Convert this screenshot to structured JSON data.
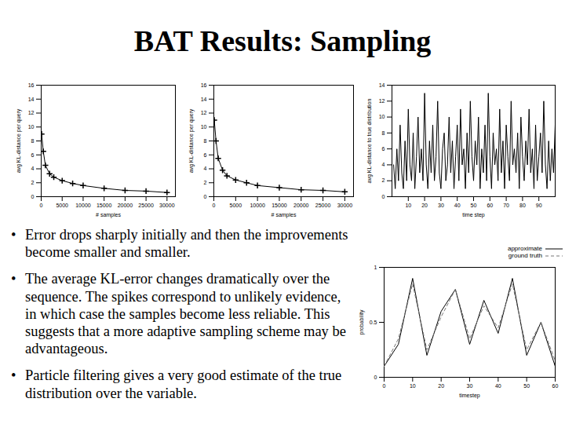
{
  "title": "BAT Results: Sampling",
  "bullets": [
    "Error drops sharply initially and then the improvements become smaller and smaller.",
    "The average KL-error changes dramatically over the sequence. The spikes correspond to unlikely evidence, in which case the samples become less reliable. This suggests that a more adaptive sampling scheme may be advantageous.",
    "Particle filtering gives a very good estimate of the true distribution over the variable."
  ],
  "chart_data": [
    {
      "type": "line",
      "x_label": "# samples",
      "y_label": "avg KL-distance per query",
      "x": [
        100,
        500,
        1000,
        2000,
        3000,
        5000,
        7500,
        10000,
        15000,
        20000,
        25000,
        30000
      ],
      "values": [
        9,
        6.5,
        4.5,
        3.3,
        2.8,
        2.3,
        1.9,
        1.6,
        1.2,
        0.9,
        0.8,
        0.6
      ],
      "color": "#000000",
      "marker": "plus",
      "xlim": [
        0,
        32000
      ],
      "xticks": [
        0,
        5000,
        10000,
        15000,
        20000,
        25000,
        30000
      ],
      "ylim": [
        0,
        16
      ],
      "yticks": [
        0,
        2,
        4,
        6,
        8,
        10,
        12,
        14,
        16
      ],
      "grid": false
    },
    {
      "type": "line",
      "x_label": "# samples",
      "y_label": "avg KL-distance per query",
      "x": [
        100,
        500,
        1000,
        2000,
        3000,
        5000,
        7500,
        10000,
        15000,
        20000,
        25000,
        30000
      ],
      "values": [
        11,
        8,
        5.5,
        3.8,
        3,
        2.4,
        2,
        1.6,
        1.3,
        1,
        0.9,
        0.7
      ],
      "color": "#000000",
      "marker": "plus",
      "xlim": [
        0,
        32000
      ],
      "xticks": [
        0,
        5000,
        10000,
        15000,
        20000,
        25000,
        30000
      ],
      "ylim": [
        0,
        16
      ],
      "yticks": [
        0,
        2,
        4,
        6,
        8,
        10,
        12,
        14,
        16
      ],
      "grid": false
    },
    {
      "type": "line",
      "x_label": "time step",
      "y_label": "avg KL-distance to true distribution",
      "x": [
        1,
        2,
        3,
        4,
        5,
        6,
        7,
        8,
        9,
        10,
        11,
        12,
        13,
        14,
        15,
        16,
        17,
        18,
        19,
        20,
        21,
        22,
        23,
        24,
        25,
        26,
        27,
        28,
        29,
        30,
        31,
        32,
        33,
        34,
        35,
        36,
        37,
        38,
        39,
        40,
        41,
        42,
        43,
        44,
        45,
        46,
        47,
        48,
        49,
        50,
        51,
        52,
        53,
        54,
        55,
        56,
        57,
        58,
        59,
        60,
        61,
        62,
        63,
        64,
        65,
        66,
        67,
        68,
        69,
        70,
        71,
        72,
        73,
        74,
        75,
        76,
        77,
        78,
        79,
        80,
        81,
        82,
        83,
        84,
        85,
        86,
        87,
        88,
        89,
        90,
        91,
        92,
        93,
        94,
        95,
        96,
        97,
        98,
        99,
        100
      ],
      "values": [
        4,
        1,
        6,
        2,
        9,
        3,
        1,
        7,
        2,
        11,
        4,
        2,
        8,
        1,
        5,
        10,
        3,
        6,
        2,
        13,
        4,
        1,
        7,
        3,
        9,
        2,
        5,
        12,
        3,
        1,
        6,
        8,
        2,
        4,
        10,
        3,
        7,
        1,
        5,
        9,
        2,
        11,
        4,
        6,
        1,
        8,
        3,
        12,
        5,
        2,
        7,
        4,
        10,
        1,
        6,
        3,
        9,
        2,
        13,
        5,
        1,
        8,
        4,
        6,
        2,
        11,
        3,
        7,
        1,
        9,
        5,
        2,
        12,
        4,
        6,
        3,
        8,
        1,
        10,
        5,
        2,
        7,
        4,
        11,
        3,
        6,
        1,
        9,
        2,
        5,
        8,
        3,
        12,
        4,
        1,
        7,
        2,
        6,
        3,
        9
      ],
      "color": "#000000",
      "xlim": [
        0,
        100
      ],
      "xticks": [
        10,
        20,
        30,
        40,
        50,
        60,
        70,
        80,
        90
      ],
      "ylim": [
        0,
        14
      ],
      "yticks": [
        0,
        2,
        4,
        6,
        8,
        10,
        12,
        14
      ],
      "grid": false
    },
    {
      "type": "line",
      "x_label": "timestep",
      "y_label": "probability",
      "x": [
        0,
        5,
        10,
        15,
        20,
        25,
        30,
        35,
        40,
        45,
        50,
        55,
        60
      ],
      "series": [
        {
          "name": "approximate",
          "color": "#000000",
          "line_style": "solid",
          "values": [
            0.1,
            0.3,
            0.9,
            0.2,
            0.6,
            0.8,
            0.3,
            0.7,
            0.4,
            0.9,
            0.2,
            0.5,
            0.1
          ]
        },
        {
          "name": "ground truth",
          "color": "#777777",
          "line_style": "dashed",
          "values": [
            0.1,
            0.35,
            0.85,
            0.25,
            0.55,
            0.8,
            0.35,
            0.65,
            0.45,
            0.85,
            0.25,
            0.5,
            0.15
          ]
        }
      ],
      "xlim": [
        0,
        60
      ],
      "xticks": [
        0,
        10,
        20,
        30,
        40,
        50,
        60
      ],
      "ylim": [
        0,
        1
      ],
      "yticks": [
        0,
        0.5,
        1
      ],
      "legend": "upper right",
      "grid": false
    }
  ]
}
